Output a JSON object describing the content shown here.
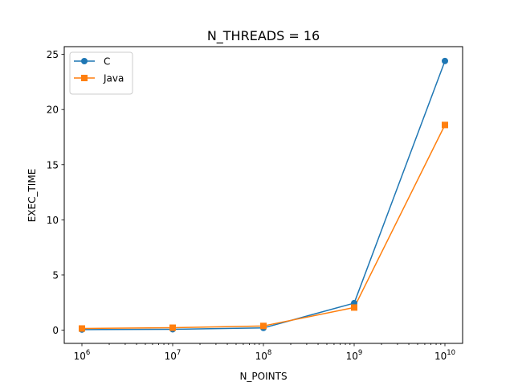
{
  "chart_data": {
    "type": "line",
    "title": "N_THREADS = 16",
    "xlabel": "N_POINTS",
    "ylabel": "EXEC_TIME",
    "x_scale": "log",
    "x": [
      1000000,
      10000000,
      100000000,
      1000000000,
      10000000000
    ],
    "x_tick_labels": [
      {
        "base": "10",
        "exp": "6"
      },
      {
        "base": "10",
        "exp": "7"
      },
      {
        "base": "10",
        "exp": "8"
      },
      {
        "base": "10",
        "exp": "9"
      },
      {
        "base": "10",
        "exp": "10"
      }
    ],
    "y_ticks": [
      0,
      5,
      10,
      15,
      20,
      25
    ],
    "ylim": [
      -1.2,
      25.7
    ],
    "grid": false,
    "legend_position": "top-left",
    "series": [
      {
        "name": "C",
        "color": "#1f77b4",
        "marker": "circle",
        "values": [
          0.05,
          0.08,
          0.2,
          2.45,
          24.4
        ]
      },
      {
        "name": "Java",
        "color": "#ff7f0e",
        "marker": "square",
        "values": [
          0.15,
          0.22,
          0.38,
          2.05,
          18.6
        ]
      }
    ]
  }
}
